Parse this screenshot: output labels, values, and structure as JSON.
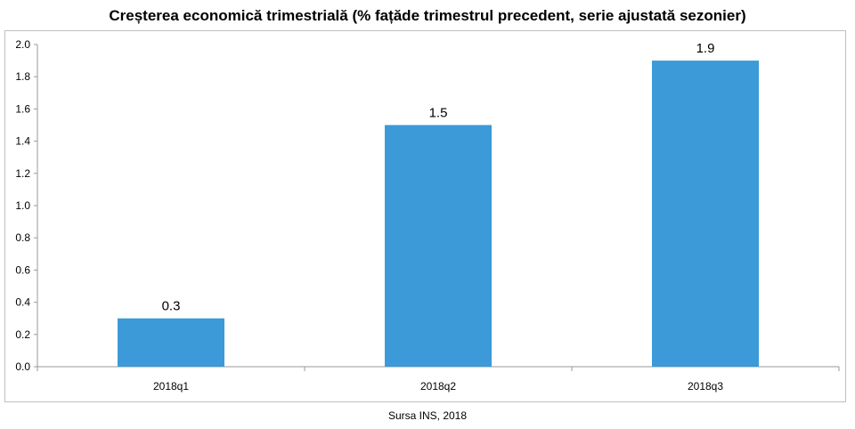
{
  "chart_data": {
    "type": "bar",
    "title": "Creșterea economică trimestrială (% fațăde trimestrul precedent, serie ajustată sezonier)",
    "categories": [
      "2018q1",
      "2018q2",
      "2018q3"
    ],
    "values": [
      0.3,
      1.5,
      1.9
    ],
    "data_labels": [
      "0.3",
      "1.5",
      "1.9"
    ],
    "ylim": [
      0,
      2.0
    ],
    "yticks": [
      "0.0",
      "0.2",
      "0.4",
      "0.6",
      "0.8",
      "1.0",
      "1.2",
      "1.4",
      "1.6",
      "1.8",
      "2.0"
    ],
    "xlabel": "",
    "ylabel": "",
    "grid": false,
    "legend": "none",
    "bar_color": "#3b9ad7"
  },
  "source": "Sursa INS, 2018"
}
